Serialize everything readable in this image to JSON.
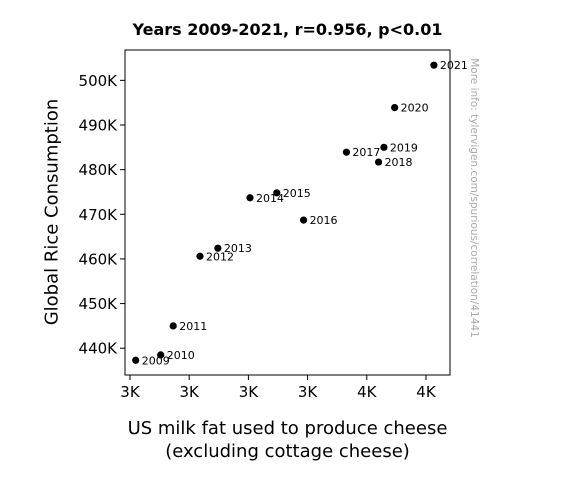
{
  "chart_data": {
    "type": "scatter",
    "title": "Years 2009-2021, r=0.956, p<0.01",
    "xlabel": "US milk fat used to produce cheese (excluding cottage cheese)",
    "ylabel": "Global Rice Consumption",
    "watermark": "More info: tylervigen.com/spurious/correlation/41441",
    "x_ticks": [
      "3K",
      "3K",
      "3K",
      "3K",
      "4K",
      "4K"
    ],
    "y_ticks": [
      {
        "value": 440000,
        "label": "440K"
      },
      {
        "value": 450000,
        "label": "450K"
      },
      {
        "value": 460000,
        "label": "460K"
      },
      {
        "value": 470000,
        "label": "470K"
      },
      {
        "value": 480000,
        "label": "480K"
      },
      {
        "value": 490000,
        "label": "490K"
      },
      {
        "value": 500000,
        "label": "500K"
      }
    ],
    "xlim": [
      2940,
      3850
    ],
    "ylim": [
      434000,
      506800
    ],
    "point_color": "#000000",
    "points": [
      {
        "label": "2009",
        "x": 2970,
        "y": 437300
      },
      {
        "label": "2010",
        "x": 3040,
        "y": 438500
      },
      {
        "label": "2011",
        "x": 3075,
        "y": 445000
      },
      {
        "label": "2012",
        "x": 3150,
        "y": 460600
      },
      {
        "label": "2013",
        "x": 3200,
        "y": 462400
      },
      {
        "label": "2014",
        "x": 3290,
        "y": 473700
      },
      {
        "label": "2015",
        "x": 3365,
        "y": 474800
      },
      {
        "label": "2016",
        "x": 3440,
        "y": 468700
      },
      {
        "label": "2017",
        "x": 3560,
        "y": 483900
      },
      {
        "label": "2018",
        "x": 3650,
        "y": 481700
      },
      {
        "label": "2019",
        "x": 3665,
        "y": 485000
      },
      {
        "label": "2020",
        "x": 3695,
        "y": 493900
      },
      {
        "label": "2021",
        "x": 3805,
        "y": 503400
      }
    ]
  }
}
